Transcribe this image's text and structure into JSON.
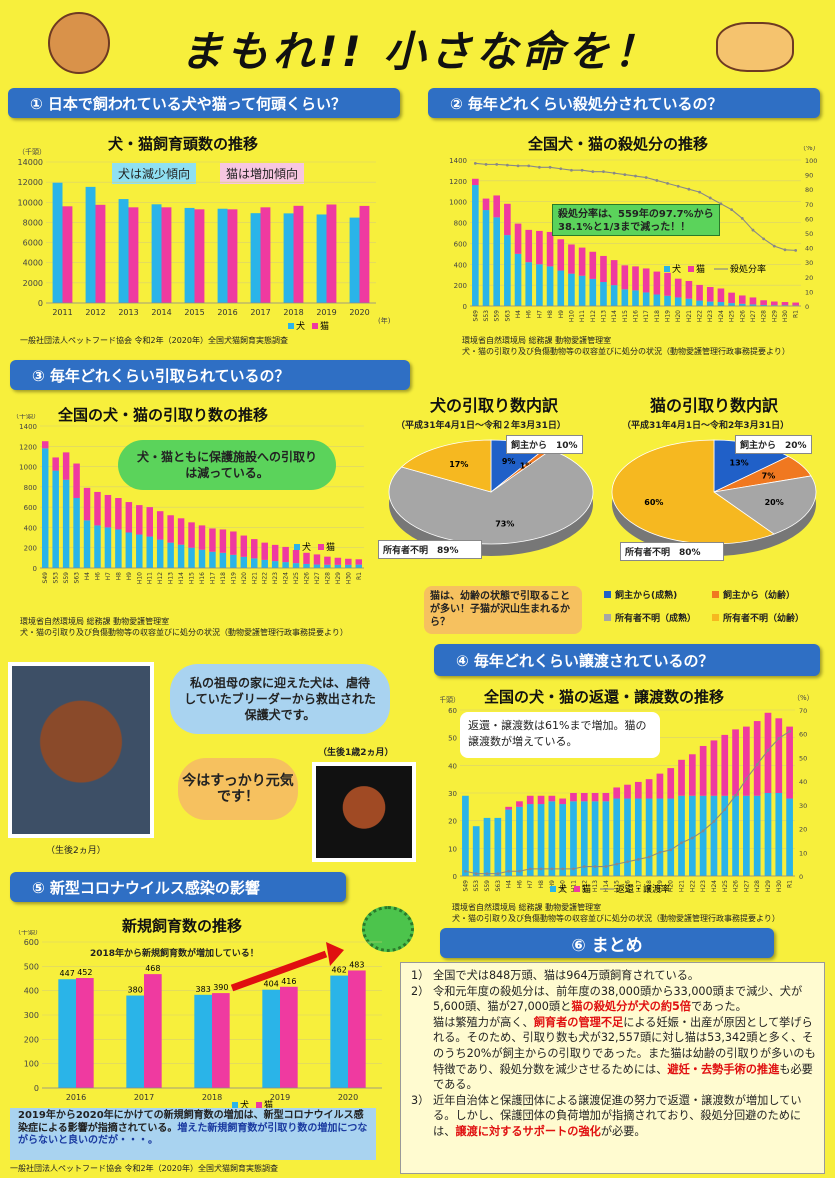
{
  "title": "まもれ!! 小さな命を！",
  "sec1": {
    "header": "① 日本で飼われている犬や猫って何頭くらい？",
    "chart_title": "犬・猫飼育頭数の推移",
    "tag_dog": "犬は減少傾向",
    "tag_cat": "猫は増加傾向",
    "source": "一般社団法人ペットフード協会 令和2年（2020年）全国犬猫飼育実態調査"
  },
  "sec2": {
    "header": "② 毎年どれくらい殺処分されているの？",
    "chart_title": "全国犬・猫の殺処分の推移",
    "callout": "殺処分率は、559年の97.7%から38.1%と1/3まで減った！！",
    "source1": "環境省自然環境局 総務課 動物愛護管理室",
    "source2": "犬・猫の引取り及び負傷動物等の収容並びに処分の状況（動物愛護管理行政事務提要より）"
  },
  "sec3": {
    "header": "③ 毎年どれくらい引取られているの？",
    "chart_title": "全国の犬・猫の引取り数の推移",
    "bubble": "犬・猫ともに保護施設への引取りは減っている。",
    "source1": "環境省自然環境局 総務課 動物愛護管理室",
    "source2": "犬・猫の引取り及び負傷動物等の収容並びに処分の状況（動物愛護管理行政事務提要より）"
  },
  "pie_dog": {
    "title": "犬の引取り数内訳",
    "period": "（平成31年4月1日～令和２年3月31日）",
    "label_owner": "飼主から　10%",
    "label_unknown": "所有者不明　89%"
  },
  "pie_cat": {
    "title": "猫の引取り数内訳",
    "period": "（平成31年4月1日～令和2年3月31日）",
    "label_owner": "飼主から　20%",
    "label_unknown": "所有者不明　80%"
  },
  "pie_note": "猫は、幼齢の状態で引取ることが多い！子猫が沢山生まれるから？",
  "pie_legend": [
    "飼主から(成熟)",
    "飼主から（幼齢）",
    "所有者不明（成熟）",
    "所有者不明（幼齢）"
  ],
  "story": {
    "bubble1": "私の祖母の家に迎えた犬は、虐待していたブリーダーから救出された保護犬です。",
    "bubble2": "今はすっかり元気です！",
    "cap_young": "（生後2ヵ月）",
    "cap_old": "（生後1歳2ヵ月）"
  },
  "sec4": {
    "header": "④ 毎年どれくらい譲渡されているの？",
    "chart_title": "全国の犬・猫の返還・譲渡数の推移",
    "callout": "返還・譲渡数は61%まで増加。猫の譲渡数が増えている。",
    "source1": "環境省自然環境局 総務課 動物愛護管理室",
    "source2": "犬・猫の引取り及び負傷動物等の収容並びに処分の状況（動物愛護管理行政事務提要より）"
  },
  "sec5": {
    "header": "⑤ 新型コロナウイルス感染の影響",
    "chart_title": "新規飼育数の推移",
    "annotation": "2018年から新規飼育数が増加している！",
    "note_a": "2019年から2020年にかけての新規飼育数の増加は、新型コロナウイルス感染症による影響が指摘されている。",
    "note_b": "増えた新規飼育数が引取り数の増加につながらないと良いのだが・・・。",
    "source": "一般社団法人ペットフード協会 令和2年（2020年）全国犬猫飼育実態調査"
  },
  "sec6": {
    "header": "⑥ まとめ"
  },
  "summary": {
    "i1": "全国で犬は848万頭、猫は964万頭飼育されている。",
    "i2a": "令和元年度の殺処分は、前年度の38,000頭から33,000頭まで減少、犬が5,600頭、猫が27,000頭と",
    "i2b": "猫の殺処分が犬の約5倍",
    "i2c": "であった。",
    "i2d": "猫は繁殖力が高く、",
    "i2e": "飼育者の管理不足",
    "i2f": "による妊娠・出産が原因として挙げられる。そのため、引取り数も犬が32,557頭に対し猫は53,342頭と多く、そのうち20%が飼主からの引取りであった。また猫は幼齢の引取りが多いのも特徴であり、殺処分数を減少させるためには、",
    "i2g": "避妊・去勢手術の推進",
    "i2h": "も必要である。",
    "i3a": "近年自治体と保護団体による譲渡促進の努力で返還・譲渡数が増加している。しかし、保護団体の負荷増加が指摘されており、殺処分回避のためには、",
    "i3b": "譲渡に対するサポートの強化",
    "i3c": "が必要。",
    "n1": "1）",
    "n2": "2）",
    "n3": "3）"
  },
  "colors": {
    "dog": "#2ab4e8",
    "cat": "#ef3aa0",
    "accent": "#2f6fc4",
    "red": "#e01010"
  },
  "chart_data": [
    {
      "type": "bar",
      "name_ref": "犬・猫飼育頭数の推移",
      "unit": "（千頭）",
      "xunit": "(年)",
      "categories": [
        "2011",
        "2012",
        "2013",
        "2014",
        "2015",
        "2016",
        "2017",
        "2018",
        "2019",
        "2020"
      ],
      "series": [
        {
          "name": "犬",
          "values": [
            11940,
            11530,
            10320,
            9800,
            9440,
            9360,
            8920,
            8900,
            8790,
            8480
          ]
        },
        {
          "name": "猫",
          "values": [
            9600,
            9750,
            9500,
            9500,
            9300,
            9300,
            9500,
            9650,
            9780,
            9640
          ]
        }
      ],
      "ylim": [
        0,
        14000
      ],
      "yticks": [
        0,
        2000,
        4000,
        6000,
        8000,
        10000,
        12000,
        14000
      ],
      "legend": "bottom-right"
    },
    {
      "type": "bar",
      "name_ref": "全国犬・猫の殺処分の推移",
      "categories": [
        "S49",
        "S53",
        "S59",
        "S63",
        "H4",
        "H6",
        "H7",
        "H8",
        "H9",
        "H10",
        "H11",
        "H12",
        "H13",
        "H14",
        "H15",
        "H16",
        "H17",
        "H18",
        "H19",
        "H20",
        "H21",
        "H22",
        "H23",
        "H24",
        "H25",
        "H26",
        "H27",
        "H28",
        "H29",
        "H30",
        "R1"
      ],
      "series": [
        {
          "name": "犬",
          "values": [
            1160,
            920,
            850,
            680,
            500,
            420,
            400,
            380,
            340,
            310,
            290,
            260,
            230,
            200,
            160,
            150,
            130,
            110,
            98,
            82,
            70,
            52,
            42,
            38,
            28,
            21,
            15,
            10,
            8,
            8,
            6
          ]
        },
        {
          "name": "猫",
          "values": [
            60,
            110,
            210,
            300,
            290,
            310,
            320,
            330,
            300,
            280,
            270,
            260,
            250,
            240,
            230,
            230,
            230,
            220,
            220,
            180,
            170,
            150,
            140,
            130,
            100,
            80,
            67,
            45,
            35,
            30,
            27
          ]
        },
        {
          "name": "殺処分率",
          "values": [
            97.7,
            97.0,
            97.0,
            96.5,
            96.0,
            96.0,
            95.0,
            95.0,
            94.0,
            93.0,
            93.0,
            92.0,
            92.0,
            91.0,
            90.0,
            89.0,
            88.0,
            86.0,
            84.0,
            82.0,
            80.0,
            78.0,
            74.0,
            70.0,
            66.0,
            60.0,
            52.0,
            46.0,
            41.0,
            38.5,
            38.1
          ]
        }
      ],
      "ylim": [
        0,
        1400
      ],
      "yticks": [
        0,
        200,
        400,
        600,
        800,
        1000,
        1200,
        1400
      ],
      "y2lim": [
        0,
        100
      ],
      "y2ticks": [
        0,
        10,
        20,
        30,
        40,
        50,
        60,
        70,
        80,
        90,
        100
      ],
      "unit2": "（%）"
    },
    {
      "type": "bar",
      "name_ref": "全国の犬・猫の引取り数の推移",
      "unit": "（千頭）",
      "categories": [
        "S49",
        "S53",
        "S59",
        "S63",
        "H4",
        "H6",
        "H7",
        "H8",
        "H9",
        "H10",
        "H11",
        "H12",
        "H13",
        "H14",
        "H15",
        "H16",
        "H17",
        "H18",
        "H19",
        "H20",
        "H21",
        "H22",
        "H23",
        "H24",
        "H25",
        "H26",
        "H27",
        "H28",
        "H29",
        "H30",
        "R1"
      ],
      "series": [
        {
          "name": "犬",
          "values": [
            1180,
            960,
            870,
            690,
            470,
            420,
            400,
            380,
            350,
            330,
            310,
            280,
            250,
            230,
            200,
            180,
            160,
            150,
            130,
            110,
            95,
            80,
            68,
            58,
            48,
            40,
            34,
            32,
            31,
            31,
            33
          ]
        },
        {
          "name": "猫",
          "values": [
            70,
            130,
            270,
            340,
            320,
            330,
            320,
            310,
            300,
            290,
            290,
            280,
            270,
            260,
            250,
            240,
            230,
            230,
            230,
            210,
            190,
            170,
            160,
            150,
            130,
            110,
            100,
            80,
            70,
            60,
            53
          ]
        }
      ],
      "ylim": [
        0,
        1400
      ],
      "yticks": [
        0,
        200,
        400,
        600,
        800,
        1000,
        1200,
        1400
      ]
    },
    {
      "type": "pie",
      "name_ref": "犬の引取り数内訳",
      "labels": [
        "飼主から(成熟)",
        "飼主から（幼齢）",
        "所有者不明（成熟）",
        "所有者不明（幼齢）"
      ],
      "values": [
        9,
        1,
        73,
        17
      ]
    },
    {
      "type": "pie",
      "name_ref": "猫の引取り数内訳",
      "labels": [
        "飼主から(成熟)",
        "飼主から（幼齢）",
        "所有者不明（成熟）",
        "所有者不明（幼齢）"
      ],
      "values": [
        13,
        7,
        20,
        60
      ]
    },
    {
      "type": "bar",
      "name_ref": "全国の犬・猫の返還・譲渡数の推移",
      "unit": "（千頭）",
      "categories": [
        "S49",
        "S53",
        "S59",
        "S63",
        "H4",
        "H6",
        "H7",
        "H8",
        "H9",
        "H10",
        "H11",
        "H12",
        "H13",
        "H14",
        "H15",
        "H16",
        "H17",
        "H18",
        "H19",
        "H20",
        "H21",
        "H22",
        "H23",
        "H24",
        "H25",
        "H26",
        "H27",
        "H28",
        "H29",
        "H30",
        "R1"
      ],
      "series": [
        {
          "name": "犬",
          "values": [
            29,
            18,
            21,
            21,
            24,
            25,
            26,
            26,
            27,
            26,
            27,
            27,
            27,
            27,
            28,
            28,
            28,
            28,
            28,
            28,
            29,
            29,
            29,
            29,
            29,
            29,
            29,
            29,
            30,
            30,
            28
          ]
        },
        {
          "name": "猫",
          "values": [
            0,
            0,
            0,
            0,
            1,
            2,
            3,
            3,
            2,
            2,
            3,
            3,
            3,
            3,
            4,
            5,
            6,
            7,
            9,
            11,
            13,
            15,
            18,
            20,
            22,
            24,
            25,
            27,
            29,
            27,
            26
          ]
        },
        {
          "name": "返還・譲渡率",
          "values": [
            2,
            1,
            1,
            1,
            2,
            2,
            3,
            3,
            3,
            3,
            3,
            4,
            4,
            4,
            5,
            6,
            7,
            8,
            10,
            11,
            14,
            16,
            19,
            23,
            28,
            34,
            41,
            47,
            53,
            58,
            61
          ]
        }
      ],
      "ylim": [
        0,
        60
      ],
      "yticks": [
        0,
        10,
        20,
        30,
        40,
        50,
        60
      ],
      "y2lim": [
        0,
        70
      ],
      "y2ticks": [
        0,
        10,
        20,
        30,
        40,
        50,
        60,
        70
      ],
      "unit2": "（%）"
    },
    {
      "type": "bar",
      "name_ref": "新規飼育数の推移",
      "unit": "（千頭）",
      "categories": [
        "2016",
        "2017",
        "2018",
        "2019",
        "2020"
      ],
      "series": [
        {
          "name": "犬",
          "values": [
            447,
            380,
            383,
            404,
            462
          ]
        },
        {
          "name": "猫",
          "values": [
            452,
            468,
            390,
            416,
            483
          ]
        }
      ],
      "ylim": [
        0,
        600
      ],
      "yticks": [
        0,
        100,
        200,
        300,
        400,
        500,
        600
      ]
    }
  ],
  "legend": {
    "dog": "犬",
    "cat": "猫",
    "rate1": "殺処分率",
    "rate2": "返還・譲渡率"
  }
}
